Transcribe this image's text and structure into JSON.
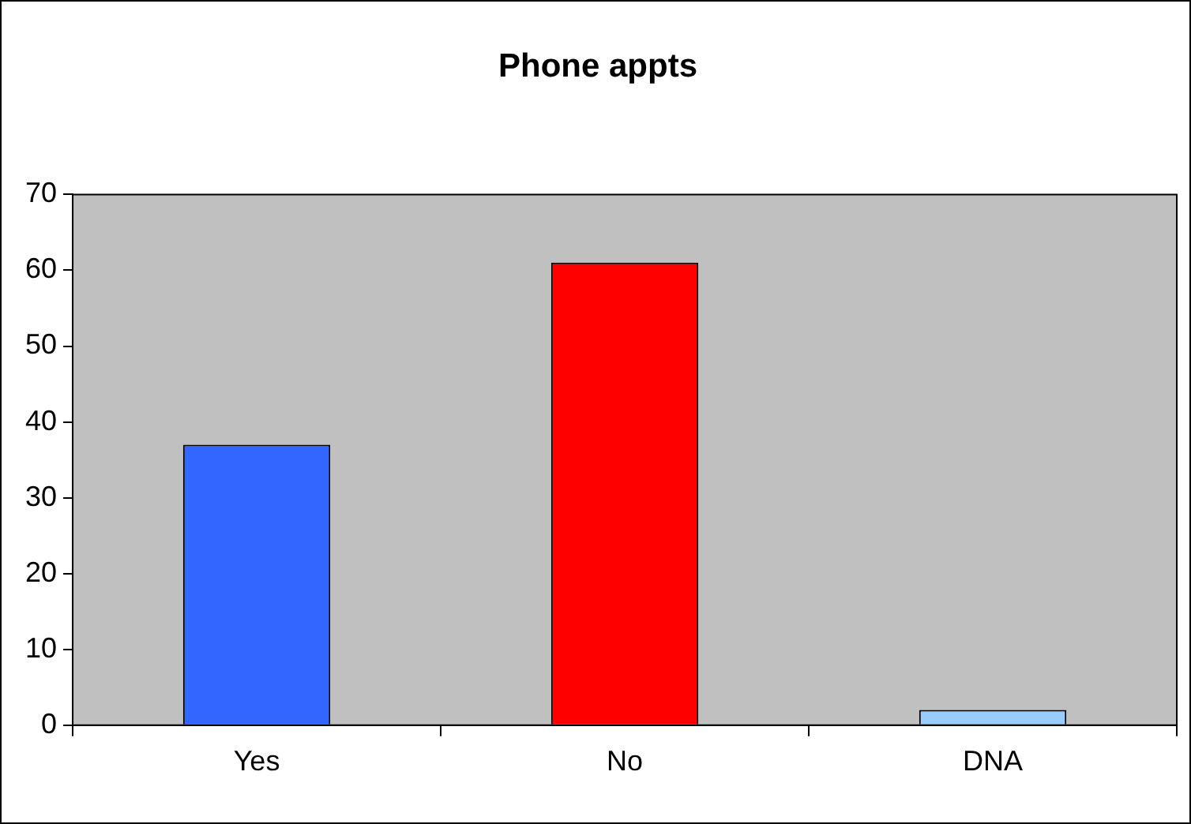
{
  "chart_data": {
    "type": "bar",
    "title": "Phone appts",
    "categories": [
      "Yes",
      "No",
      "DNA"
    ],
    "values": [
      37,
      61,
      2
    ],
    "colors": [
      "#3366ff",
      "#ff0000",
      "#99ccff"
    ],
    "ylim": [
      0,
      70
    ],
    "yticks": [
      0,
      10,
      20,
      30,
      40,
      50,
      60,
      70
    ]
  }
}
